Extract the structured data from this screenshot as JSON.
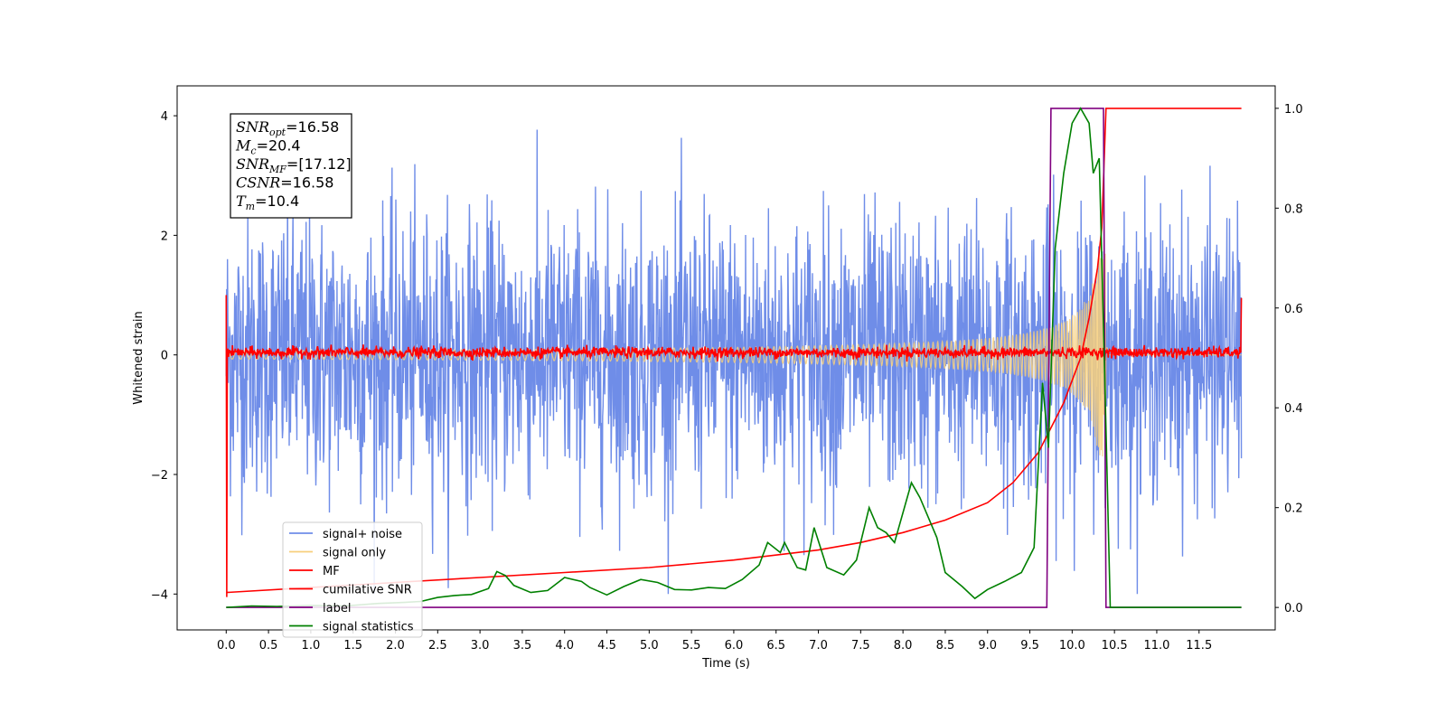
{
  "chart_data": {
    "type": "line",
    "xlabel": "Time (s)",
    "ylabel": "Whitened strain",
    "x_ticks": [
      "0.0",
      "0.5",
      "1.0",
      "1.5",
      "2.0",
      "2.5",
      "3.0",
      "3.5",
      "4.0",
      "4.5",
      "5.0",
      "5.5",
      "6.0",
      "6.5",
      "7.0",
      "7.5",
      "8.0",
      "8.5",
      "9.0",
      "9.5",
      "10.0",
      "10.5",
      "11.0",
      "11.5"
    ],
    "y_left_ticks": [
      "4",
      "2",
      "0",
      "−2",
      "−4"
    ],
    "y_right_ticks": [
      "1.0",
      "0.8",
      "0.6",
      "0.4",
      "0.2",
      "0.0"
    ],
    "xlim": [
      -0.58,
      12.4
    ],
    "ylim_left": [
      -4.6,
      4.5
    ],
    "ylim_right": [
      -0.045,
      1.045
    ],
    "annotation": [
      {
        "sym": "SNR",
        "sub": "opt",
        "value": "=16.58"
      },
      {
        "sym": "M",
        "sub": "c",
        "value": "=20.4"
      },
      {
        "sym": "SNR",
        "sub": "MF",
        "value": "=[17.12]"
      },
      {
        "sym": "CSNR",
        "sub": "",
        "value": "=16.58"
      },
      {
        "sym": "T",
        "sub": "m",
        "value": "=10.4"
      }
    ],
    "legend_position": "lower-left",
    "series": [
      {
        "name": "signal+ noise",
        "color": "#6f8de8",
        "axis": "left",
        "description": "whitened noisy strain, roughly -3.5 to 4 range, 0.0-12.0 s"
      },
      {
        "name": "signal only",
        "color": "#f7cf7b",
        "axis": "left",
        "description": "chirp rising from 0 to ~1.7 amplitude peaking near 10.4 s"
      },
      {
        "name": "MF",
        "color": "#ff0000",
        "axis": "left",
        "description": "matched filter output, near 0 with small fluctuation"
      },
      {
        "name": "cumilative SNR",
        "color": "#ff0000",
        "axis": "right",
        "points": [
          [
            0.0,
            0.03
          ],
          [
            1.0,
            0.04
          ],
          [
            2.0,
            0.05
          ],
          [
            3.0,
            0.06
          ],
          [
            4.0,
            0.07
          ],
          [
            5.0,
            0.08
          ],
          [
            6.0,
            0.095
          ],
          [
            7.0,
            0.115
          ],
          [
            7.5,
            0.13
          ],
          [
            8.0,
            0.15
          ],
          [
            8.5,
            0.175
          ],
          [
            9.0,
            0.21
          ],
          [
            9.3,
            0.25
          ],
          [
            9.6,
            0.31
          ],
          [
            9.9,
            0.41
          ],
          [
            10.1,
            0.5
          ],
          [
            10.2,
            0.58
          ],
          [
            10.3,
            0.68
          ],
          [
            10.35,
            0.76
          ],
          [
            10.4,
            1.0
          ],
          [
            12.0,
            1.0
          ]
        ]
      },
      {
        "name": "label",
        "color": "#800080",
        "axis": "right",
        "points": [
          [
            0.0,
            0.0
          ],
          [
            9.7,
            0.0
          ],
          [
            9.75,
            1.0
          ],
          [
            10.37,
            1.0
          ],
          [
            10.4,
            0.0
          ],
          [
            12.0,
            0.0
          ]
        ]
      },
      {
        "name": "signal statistics",
        "color": "#008000",
        "axis": "right",
        "points": [
          [
            0.0,
            0.0
          ],
          [
            0.3,
            0.003
          ],
          [
            0.6,
            0.002
          ],
          [
            1.0,
            0.004
          ],
          [
            1.4,
            0.003
          ],
          [
            1.8,
            0.008
          ],
          [
            2.1,
            0.01
          ],
          [
            2.3,
            0.012
          ],
          [
            2.5,
            0.02
          ],
          [
            2.7,
            0.024
          ],
          [
            2.9,
            0.026
          ],
          [
            3.1,
            0.038
          ],
          [
            3.2,
            0.072
          ],
          [
            3.3,
            0.064
          ],
          [
            3.4,
            0.044
          ],
          [
            3.6,
            0.03
          ],
          [
            3.8,
            0.034
          ],
          [
            4.0,
            0.06
          ],
          [
            4.2,
            0.052
          ],
          [
            4.3,
            0.04
          ],
          [
            4.5,
            0.025
          ],
          [
            4.7,
            0.042
          ],
          [
            4.9,
            0.056
          ],
          [
            5.1,
            0.05
          ],
          [
            5.3,
            0.036
          ],
          [
            5.5,
            0.035
          ],
          [
            5.7,
            0.04
          ],
          [
            5.9,
            0.038
          ],
          [
            6.1,
            0.056
          ],
          [
            6.3,
            0.085
          ],
          [
            6.4,
            0.13
          ],
          [
            6.55,
            0.11
          ],
          [
            6.6,
            0.13
          ],
          [
            6.75,
            0.08
          ],
          [
            6.85,
            0.075
          ],
          [
            6.95,
            0.16
          ],
          [
            7.1,
            0.08
          ],
          [
            7.3,
            0.065
          ],
          [
            7.45,
            0.095
          ],
          [
            7.5,
            0.13
          ],
          [
            7.6,
            0.2
          ],
          [
            7.7,
            0.16
          ],
          [
            7.8,
            0.15
          ],
          [
            7.9,
            0.13
          ],
          [
            8.1,
            0.25
          ],
          [
            8.2,
            0.22
          ],
          [
            8.4,
            0.14
          ],
          [
            8.5,
            0.07
          ],
          [
            8.7,
            0.042
          ],
          [
            8.85,
            0.018
          ],
          [
            9.0,
            0.036
          ],
          [
            9.2,
            0.052
          ],
          [
            9.4,
            0.07
          ],
          [
            9.55,
            0.12
          ],
          [
            9.65,
            0.45
          ],
          [
            9.72,
            0.32
          ],
          [
            9.8,
            0.72
          ],
          [
            9.9,
            0.87
          ],
          [
            10.0,
            0.97
          ],
          [
            10.1,
            1.0
          ],
          [
            10.2,
            0.97
          ],
          [
            10.25,
            0.87
          ],
          [
            10.32,
            0.9
          ],
          [
            10.38,
            0.5
          ],
          [
            10.45,
            0.0
          ],
          [
            12.0,
            0.0
          ]
        ]
      }
    ]
  }
}
